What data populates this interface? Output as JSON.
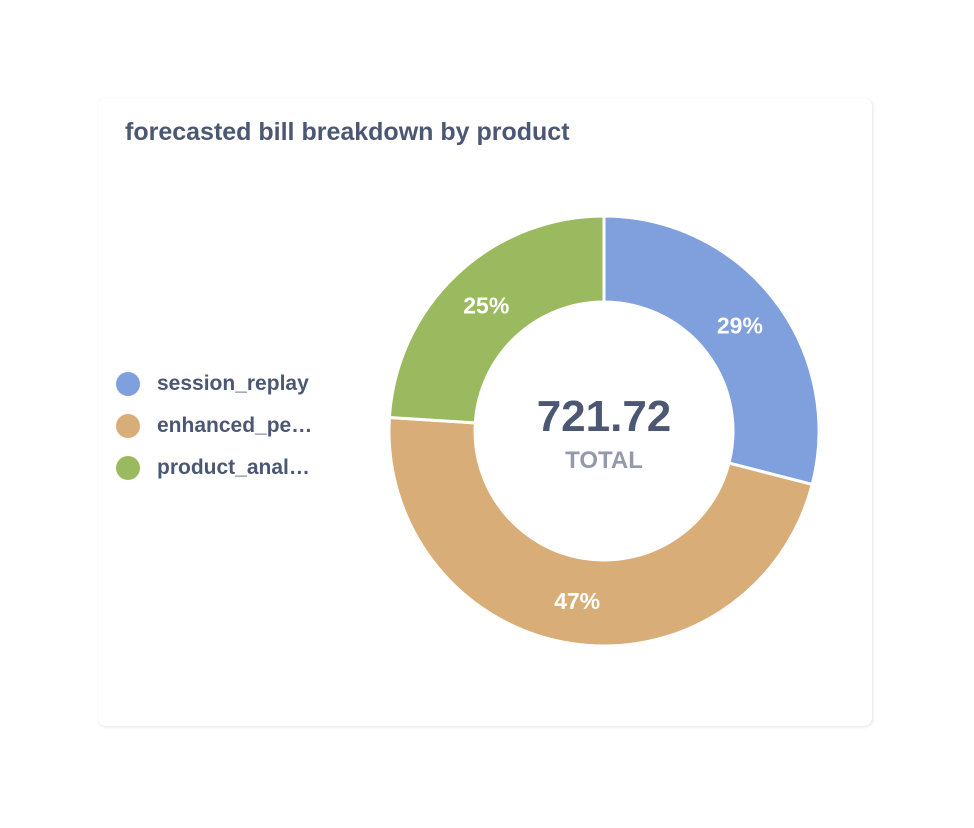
{
  "card": {
    "title": "forecasted bill breakdown by product"
  },
  "chart_data": {
    "type": "pie",
    "style": "donut",
    "title": "forecasted bill breakdown by product",
    "legend_position": "left",
    "total_value": "721.72",
    "total_caption": "TOTAL",
    "slices": [
      {
        "legend_label": "session_replay",
        "percent_label": "29%",
        "fraction": 0.29,
        "color": "#7f9fdd"
      },
      {
        "legend_label": "enhanced_pe…",
        "percent_label": "47%",
        "fraction": 0.47,
        "color": "#d9ad78"
      },
      {
        "legend_label": "product_anal…",
        "percent_label": "25%",
        "fraction": 0.24,
        "color": "#9bba60"
      }
    ]
  }
}
